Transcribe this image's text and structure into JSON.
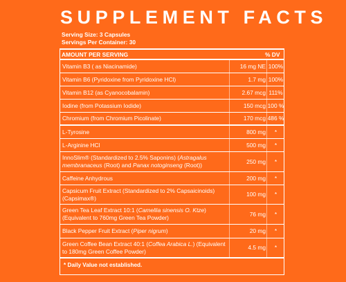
{
  "title": "SUPPLEMENT FACTS",
  "serving_size": "Serving Size: 3 Capsules",
  "servings_per_container": "Servings Per Container: 30",
  "header": {
    "amount": "AMOUNT PER SERVING",
    "dv": "% DV"
  },
  "rows": [
    {
      "name": "Vitamin B3 ( as Niacinamide)",
      "amount": "16 mg NE",
      "dv": "100%"
    },
    {
      "name": "Vitamin B6 (Pyridoxine from Pyridoxine HCl)",
      "amount": "1.7 mg",
      "dv": "100%"
    },
    {
      "name": "Vitamin B12 (as Cyanocobalamin)",
      "amount": "2.67 mcg",
      "dv": "111%"
    },
    {
      "name": "Iodine (from Potassium Iodide)",
      "amount": "150 mcg",
      "dv": "100 %"
    },
    {
      "name": "Chromium (from Chromium Picolinate)",
      "amount": "170 mcg",
      "dv": "486 %"
    },
    {
      "name": "L-Tyrosine",
      "amount": "800 mg",
      "dv": "*"
    },
    {
      "name": "L-Arginine HCl",
      "amount": "500 mg",
      "dv": "*"
    },
    {
      "name_parts": [
        "InnoSlim® (Standardized to 2.5% Saponins) (",
        "Astragalus membranaceus",
        " (Root) and ",
        "Panax notoginseng",
        " (Root))"
      ],
      "amount": "250 mg",
      "dv": "*"
    },
    {
      "name": "Caffeine Anhydrous",
      "amount": "200 mg",
      "dv": "*"
    },
    {
      "name": "Capsicum Fruit Extract (Standardized to 2% Capsaicinoids) (Capsimax®)",
      "amount": "100 mg",
      "dv": "*"
    },
    {
      "name_parts": [
        "Green Tea Leaf Extract 10:1 (",
        "Camellia sinensis O. Ktze",
        ") (Equivalent to 760mg Green Tea Powder)"
      ],
      "amount": "76 mg",
      "dv": "*"
    },
    {
      "name_parts": [
        "Black Pepper Fruit Extract (",
        "Piper nigrum",
        ")"
      ],
      "amount": "20 mg",
      "dv": "*"
    },
    {
      "name_parts": [
        "Green Coffee Bean Extract 40:1 (",
        "Coffea Arabica L.",
        ") (Equivalent to 180mg Green Coffee Powder)"
      ],
      "amount": "4.5 mg",
      "dv": "*"
    }
  ],
  "footnote": "* Daily Value not established.",
  "colors": {
    "background": "#ff6a1a",
    "text": "#ffffff"
  }
}
